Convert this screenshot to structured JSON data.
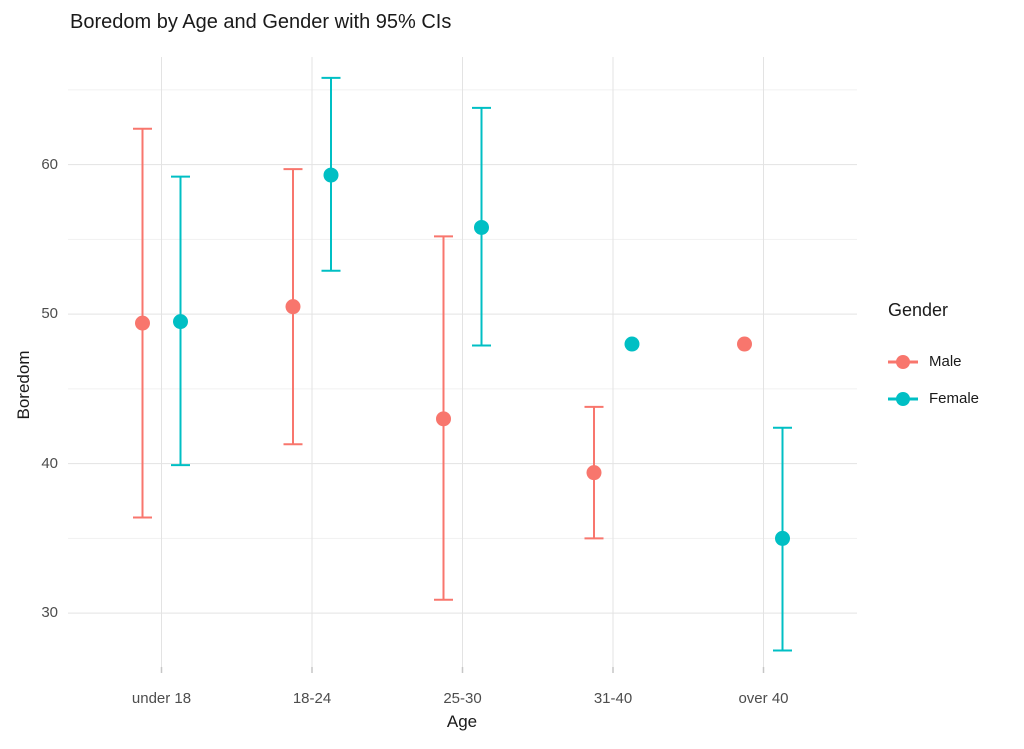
{
  "page": {
    "background": "#FFFFFF"
  },
  "chart_data": {
    "type": "pointrange",
    "title": "Boredom by Age and Gender with 95% CIs",
    "xlabel": "Age",
    "ylabel": "Boredom",
    "categories": [
      "under 18",
      "18-24",
      "25-30",
      "31-40",
      "over 40"
    ],
    "y_ticks": [
      30,
      40,
      50,
      60
    ],
    "y_minor_ticks": [
      35,
      45,
      55,
      65
    ],
    "ylim": [
      26.4,
      67.2
    ],
    "grid": true,
    "legend": {
      "title": "Gender",
      "position": "right",
      "entries": [
        "Male",
        "Female"
      ]
    },
    "series": [
      {
        "name": "Male",
        "color": "#F8766D",
        "means": [
          49.4,
          50.5,
          43.0,
          39.4,
          48.0
        ],
        "ci_low": [
          36.4,
          41.3,
          30.9,
          35.0,
          null
        ],
        "ci_high": [
          62.4,
          59.7,
          55.2,
          43.8,
          null
        ]
      },
      {
        "name": "Female",
        "color": "#00BFC4",
        "means": [
          49.5,
          59.3,
          55.8,
          48.0,
          35.0
        ],
        "ci_low": [
          39.9,
          52.9,
          47.9,
          null,
          27.5
        ],
        "ci_high": [
          59.2,
          65.8,
          63.8,
          null,
          42.4
        ]
      }
    ],
    "colors": {
      "grid_major": "#E3E3E3",
      "grid_minor": "#F1F1F1",
      "axis_text": "#4D4D4D",
      "title_text": "#1A1A1A",
      "tick_mark": "#C6C6C6"
    }
  }
}
